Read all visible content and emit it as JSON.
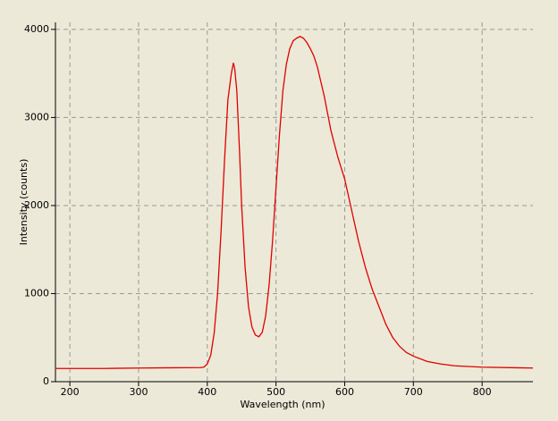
{
  "chart_data": {
    "type": "line",
    "x_label": "Wavelength (nm)",
    "y_label": "Intensity (counts)",
    "x": [
      180,
      250,
      300,
      350,
      390,
      395,
      400,
      405,
      410,
      415,
      420,
      425,
      430,
      435,
      438,
      440,
      443,
      447,
      450,
      455,
      460,
      465,
      470,
      475,
      480,
      485,
      490,
      495,
      500,
      505,
      510,
      515,
      520,
      525,
      530,
      535,
      540,
      545,
      550,
      555,
      560,
      570,
      580,
      590,
      600,
      610,
      620,
      630,
      640,
      650,
      660,
      670,
      680,
      690,
      700,
      720,
      740,
      760,
      800,
      850,
      874
    ],
    "series": [
      {
        "color": "#e00000",
        "values": [
          150,
          150,
          155,
          158,
          160,
          165,
          200,
          300,
          550,
          1000,
          1700,
          2500,
          3200,
          3500,
          3620,
          3550,
          3300,
          2600,
          2000,
          1300,
          850,
          620,
          530,
          510,
          560,
          750,
          1100,
          1600,
          2200,
          2800,
          3300,
          3600,
          3780,
          3870,
          3900,
          3920,
          3900,
          3850,
          3780,
          3700,
          3580,
          3250,
          2850,
          2550,
          2300,
          1950,
          1600,
          1300,
          1050,
          850,
          650,
          500,
          400,
          330,
          290,
          230,
          200,
          180,
          165,
          158,
          155
        ]
      }
    ],
    "xlim": [
      179,
      874
    ],
    "ylim": [
      0,
      4080
    ],
    "xticks": [
      200,
      300,
      400,
      500,
      600,
      700,
      800
    ],
    "yticks": [
      0,
      1000,
      2000,
      3000,
      4000
    ],
    "grid": true
  }
}
